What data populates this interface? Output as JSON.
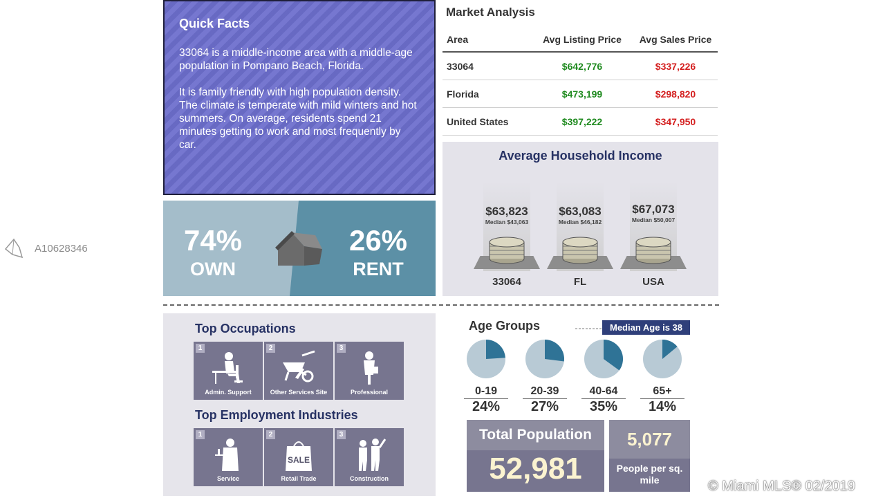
{
  "watermark": {
    "listing_id": "A10628346",
    "copyright": "© Miami MLS® 02/2019"
  },
  "quick_facts": {
    "title": "Quick Facts",
    "para1": "33064 is a middle-income area with a middle-age population in Pompano Beach, Florida.",
    "para2": "It is family friendly with high population density. The climate is temperate with mild winters and hot summers. On average, residents spend 21 minutes getting to work and most frequently by car."
  },
  "housing": {
    "own_pct": "74%",
    "own_label": "OWN",
    "rent_pct": "26%",
    "rent_label": "RENT"
  },
  "market": {
    "title": "Market Analysis",
    "headers": {
      "area": "Area",
      "listing": "Avg Listing Price",
      "sales": "Avg Sales Price"
    },
    "rows": [
      {
        "area": "33064",
        "listing": "$642,776",
        "sales": "$337,226"
      },
      {
        "area": "Florida",
        "listing": "$473,199",
        "sales": "$298,820"
      },
      {
        "area": "United States",
        "listing": "$397,222",
        "sales": "$347,950"
      }
    ]
  },
  "income": {
    "title": "Average Household Income",
    "items": [
      {
        "value": "$63,823",
        "median": "Median $43,063",
        "label": "33064"
      },
      {
        "value": "$63,083",
        "median": "Median $46,182",
        "label": "FL"
      },
      {
        "value": "$67,073",
        "median": "Median $50,007",
        "label": "USA"
      }
    ]
  },
  "occupations": {
    "title": "Top Occupations",
    "items": [
      {
        "num": "1",
        "label": "Admin. Support",
        "icon": "office-worker-icon"
      },
      {
        "num": "2",
        "label": "Other Services Site",
        "icon": "wheelbarrow-icon"
      },
      {
        "num": "3",
        "label": "Professional",
        "icon": "professional-icon"
      }
    ]
  },
  "industries": {
    "title": "Top Employment Industries",
    "items": [
      {
        "num": "1",
        "label": "Service",
        "icon": "waiter-icon"
      },
      {
        "num": "2",
        "label": "Retail Trade",
        "icon": "sale-bag-icon",
        "bag_text": "SALE"
      },
      {
        "num": "3",
        "label": "Construction",
        "icon": "construction-workers-icon"
      }
    ]
  },
  "age_groups": {
    "title": "Age Groups",
    "median_label": "Median Age is 38",
    "colors": {
      "fill": "#2f7396",
      "base": "#b8cad5"
    },
    "items": [
      {
        "range": "0-19",
        "pct_label": "24%",
        "fraction": 0.24
      },
      {
        "range": "20-39",
        "pct_label": "27%",
        "fraction": 0.27
      },
      {
        "range": "40-64",
        "pct_label": "35%",
        "fraction": 0.35
      },
      {
        "range": "65+",
        "pct_label": "14%",
        "fraction": 0.14
      }
    ]
  },
  "population": {
    "label": "Total Population",
    "value": "52,981",
    "density_value": "5,077",
    "density_label": "People per sq. mile"
  }
}
